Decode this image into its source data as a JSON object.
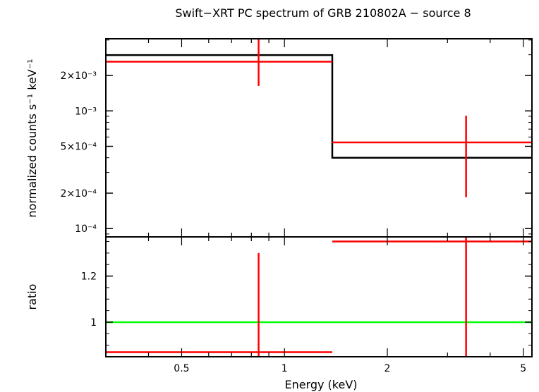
{
  "chart_data": {
    "type": "line",
    "title": "Swift−XRT PC spectrum of GRB 210802A − source 8",
    "xlabel": "Energy (keV)",
    "x_scale": "log",
    "xlim": [
      0.3,
      5.3
    ],
    "x_ticks": [
      {
        "value": 0.5,
        "label": "0.5"
      },
      {
        "value": 1,
        "label": "1"
      },
      {
        "value": 2,
        "label": "2"
      },
      {
        "value": 5,
        "label": "5"
      }
    ],
    "panels": [
      {
        "id": "spectrum",
        "ylabel": "normalized counts s⁻¹ keV⁻¹",
        "y_scale": "log",
        "ylim": [
          8.5e-05,
          0.0041
        ],
        "y_ticks": [
          {
            "value": 0.0001,
            "label": "10⁻⁴"
          },
          {
            "value": 0.0002,
            "label": "2×10⁻⁴"
          },
          {
            "value": 0.0005,
            "label": "5×10⁻⁴"
          },
          {
            "value": 0.001,
            "label": "10⁻³"
          },
          {
            "value": 0.002,
            "label": "2×10⁻³"
          }
        ],
        "series": [
          {
            "kind": "step",
            "color": "#000000",
            "points": [
              {
                "x_lo": 0.3,
                "x_hi": 1.38,
                "y": 0.00298
              },
              {
                "x_lo": 1.38,
                "x_hi": 5.3,
                "y": 0.0004
              }
            ]
          },
          {
            "kind": "errorbar",
            "color": "#ff0000",
            "points": [
              {
                "x": 0.84,
                "x_lo": 0.3,
                "x_hi": 1.38,
                "y": 0.00262,
                "y_lo": 0.00163,
                "y_hi": 0.0041
              },
              {
                "x": 3.4,
                "x_lo": 1.38,
                "x_hi": 5.3,
                "y": 0.00054,
                "y_lo": 0.000185,
                "y_hi": 0.00091
              }
            ]
          }
        ]
      },
      {
        "id": "ratio",
        "ylabel": "ratio",
        "y_scale": "linear",
        "ylim": [
          0.85,
          1.37
        ],
        "y_ticks": [
          {
            "value": 1,
            "label": "1"
          },
          {
            "value": 1.2,
            "label": "1.2"
          }
        ],
        "series": [
          {
            "kind": "hline",
            "color": "#00ff00",
            "y": 1.0
          },
          {
            "kind": "errorbar",
            "color": "#ff0000",
            "points": [
              {
                "x": 0.84,
                "x_lo": 0.3,
                "x_hi": 1.38,
                "y": 0.87,
                "y_lo": 0.85,
                "y_hi": 1.3
              },
              {
                "x": 3.4,
                "x_lo": 1.38,
                "x_hi": 5.3,
                "y": 1.35,
                "y_lo": 0.85,
                "y_hi": 1.37
              }
            ]
          }
        ]
      }
    ]
  }
}
